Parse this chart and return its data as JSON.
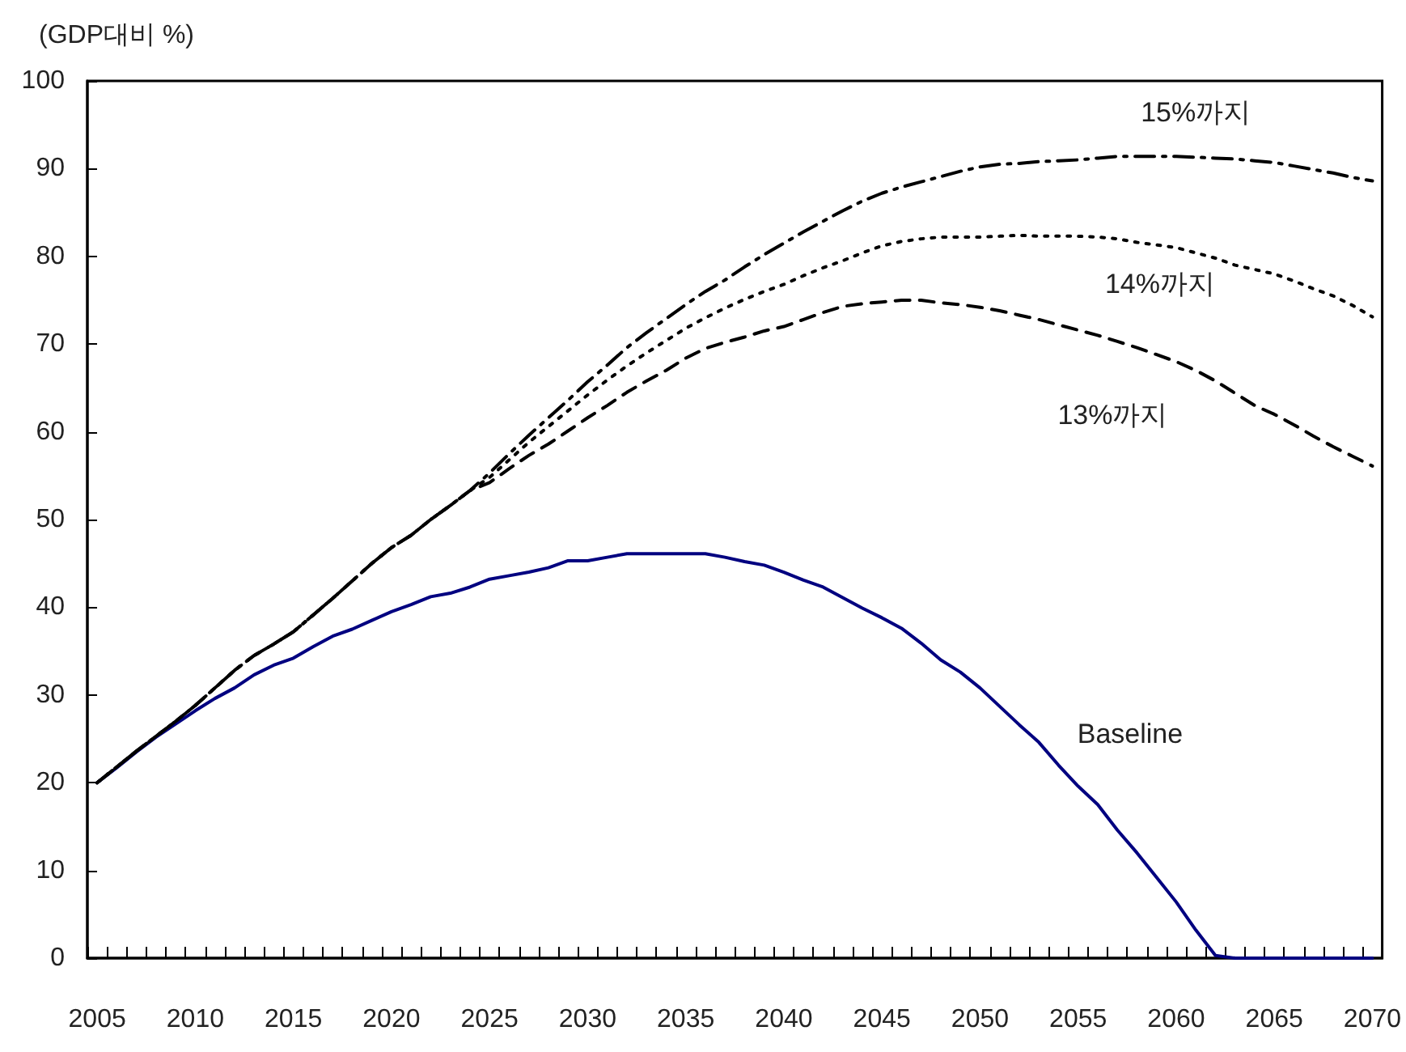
{
  "chart_data": {
    "type": "line",
    "ylabel": "(GDP대비 %)",
    "categories": [
      "2005",
      null,
      null,
      null,
      null,
      "2010",
      null,
      null,
      null,
      null,
      "2015",
      null,
      null,
      null,
      null,
      "2020",
      null,
      null,
      null,
      null,
      "2025",
      null,
      null,
      null,
      null,
      "2030",
      null,
      null,
      null,
      null,
      "2035",
      null,
      null,
      null,
      null,
      "2040",
      null,
      null,
      null,
      null,
      "2045",
      null,
      null,
      null,
      null,
      "2050",
      null,
      null,
      null,
      null,
      "2055",
      null,
      null,
      null,
      null,
      "2060",
      null,
      null,
      null,
      null,
      "2065",
      null,
      null,
      null,
      null,
      "2070"
    ],
    "ylim": [
      0,
      100
    ],
    "yticks": [
      0,
      10,
      20,
      30,
      40,
      50,
      60,
      70,
      80,
      90,
      100
    ],
    "grid": false,
    "legend": false,
    "marker": "none",
    "series": [
      {
        "name": "15%까지",
        "color": "#000000",
        "line_style": "dashdot",
        "values": [
          20,
          21.8,
          23.6,
          25.3,
          27.0,
          28.8,
          30.8,
          32.8,
          34.5,
          35.8,
          37.2,
          39.1,
          41.0,
          43.0,
          45.0,
          46.8,
          48.2,
          50.0,
          51.6,
          53.3,
          55.3,
          57.5,
          59.6,
          61.6,
          63.6,
          65.7,
          67.6,
          69.6,
          71.3,
          72.9,
          74.5,
          76.0,
          77.3,
          78.8,
          80.2,
          81.5,
          82.8,
          84.0,
          85.2,
          86.3,
          87.2,
          87.9,
          88.5,
          89.1,
          89.7,
          90.2,
          90.5,
          90.6,
          90.8,
          90.9,
          91.0,
          91.2,
          91.4,
          91.4,
          91.4,
          91.4,
          91.3,
          91.2,
          91.1,
          90.9,
          90.7,
          90.3,
          89.9,
          89.5,
          89.0,
          88.6
        ]
      },
      {
        "name": "14%까지",
        "color": "#000000",
        "line_style": "dotted",
        "values": [
          20,
          21.8,
          23.6,
          25.3,
          27.0,
          28.8,
          30.8,
          32.8,
          34.5,
          35.8,
          37.2,
          39.1,
          41.0,
          43.0,
          45.0,
          46.8,
          48.2,
          50.0,
          51.6,
          53.3,
          54.8,
          56.8,
          58.8,
          60.6,
          62.4,
          64.2,
          65.9,
          67.5,
          69.0,
          70.4,
          71.8,
          73.0,
          74.1,
          75.1,
          76.0,
          76.8,
          77.8,
          78.7,
          79.5,
          80.4,
          81.2,
          81.7,
          82.0,
          82.2,
          82.2,
          82.2,
          82.3,
          82.4,
          82.3,
          82.3,
          82.3,
          82.2,
          82.0,
          81.6,
          81.3,
          81.0,
          80.4,
          79.8,
          79.0,
          78.5,
          78.0,
          77.2,
          76.3,
          75.5,
          74.4,
          73.1
        ]
      },
      {
        "name": "13%까지",
        "color": "#000000",
        "line_style": "dashed",
        "values": [
          20,
          21.8,
          23.6,
          25.3,
          27.0,
          28.8,
          30.8,
          32.8,
          34.5,
          35.8,
          37.2,
          39.1,
          41.0,
          43.0,
          45.0,
          46.8,
          48.2,
          50.0,
          51.6,
          53.3,
          54.2,
          55.8,
          57.3,
          58.6,
          60.1,
          61.6,
          63.0,
          64.5,
          65.8,
          67.0,
          68.4,
          69.5,
          70.2,
          70.8,
          71.5,
          72.0,
          72.8,
          73.6,
          74.3,
          74.6,
          74.8,
          75.0,
          75.0,
          74.7,
          74.5,
          74.2,
          73.8,
          73.3,
          72.8,
          72.2,
          71.6,
          71.0,
          70.3,
          69.6,
          68.8,
          68.0,
          67.0,
          65.8,
          64.4,
          63.0,
          62.0,
          60.8,
          59.5,
          58.3,
          57.2,
          56.1
        ]
      },
      {
        "name": "Baseline",
        "color": "#000080",
        "line_style": "solid",
        "values": [
          20,
          21.7,
          23.5,
          25.2,
          26.7,
          28.2,
          29.6,
          30.8,
          32.3,
          33.4,
          34.2,
          35.5,
          36.7,
          37.5,
          38.5,
          39.5,
          40.3,
          41.2,
          41.6,
          42.3,
          43.2,
          43.6,
          44.0,
          44.5,
          45.3,
          45.3,
          45.7,
          46.1,
          46.1,
          46.1,
          46.1,
          46.1,
          45.7,
          45.2,
          44.8,
          44.0,
          43.1,
          42.3,
          41.1,
          39.9,
          38.8,
          37.6,
          35.9,
          34.0,
          32.6,
          30.8,
          28.7,
          26.6,
          24.6,
          22.0,
          19.6,
          17.5,
          14.6,
          12.0,
          9.2,
          6.4,
          3.2,
          0.3,
          0,
          0,
          0,
          0,
          0,
          0,
          0,
          0
        ]
      }
    ]
  }
}
